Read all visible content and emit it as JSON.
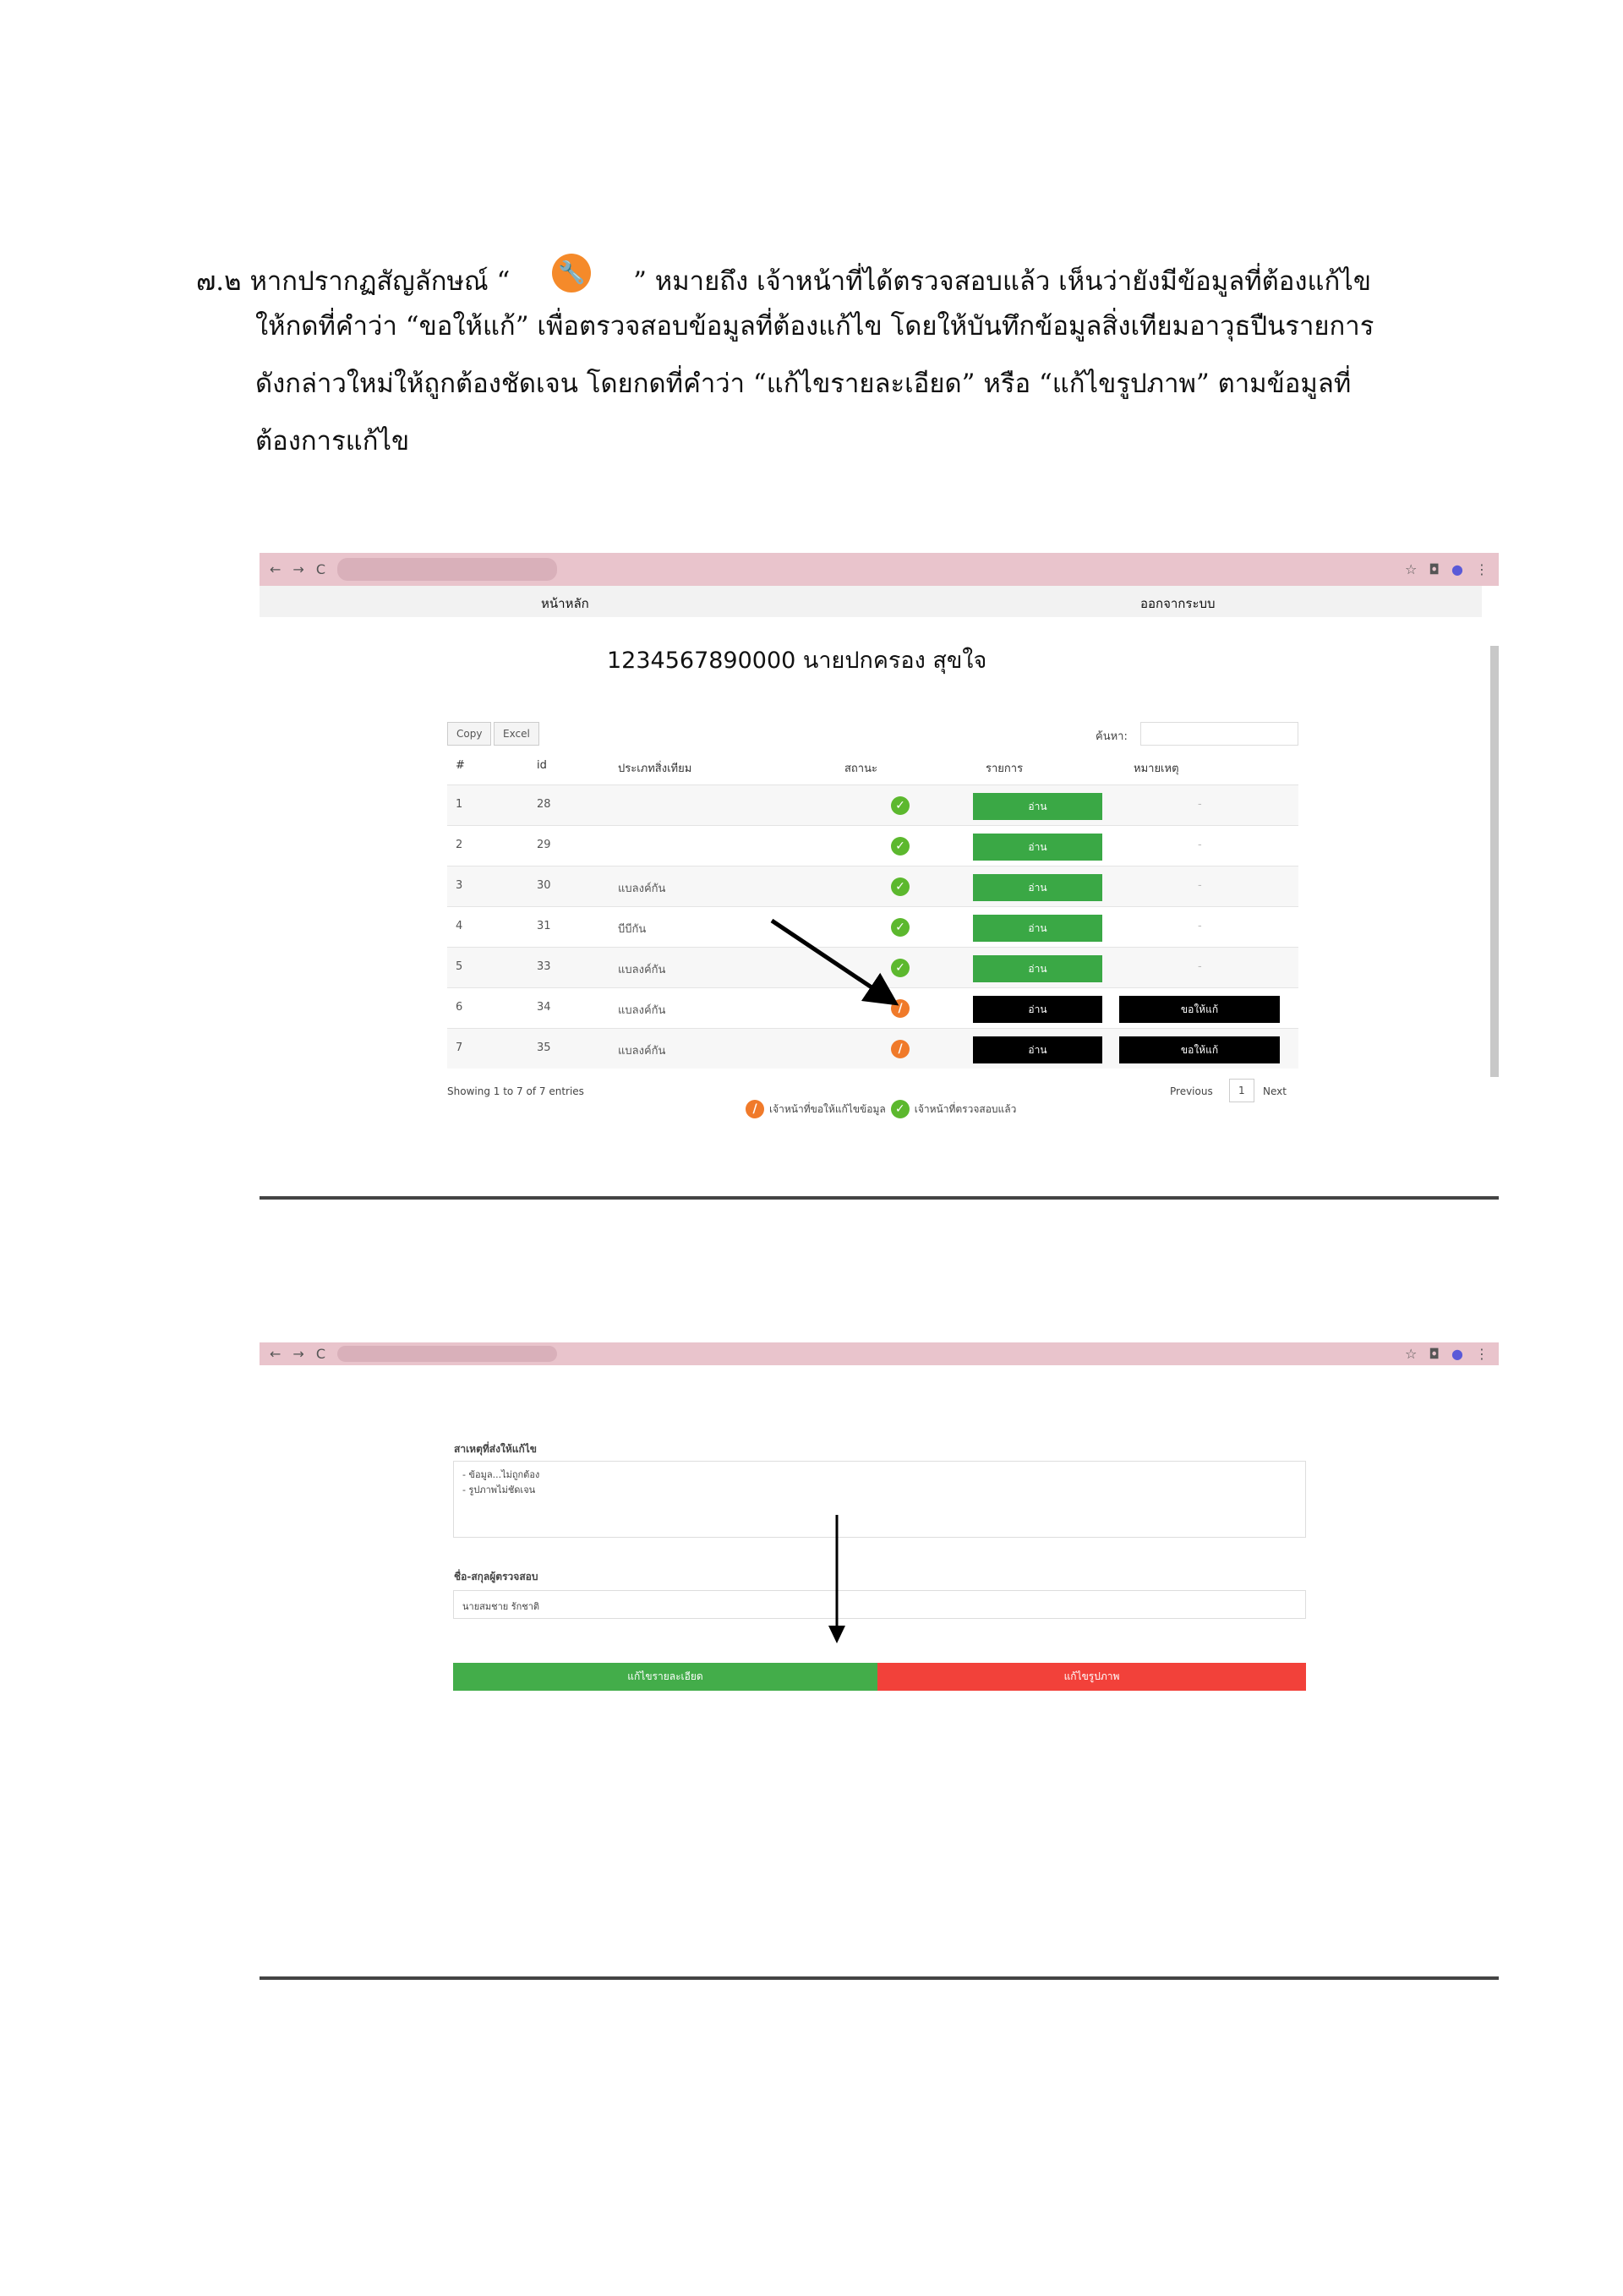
{
  "instruction": {
    "line1a": "๗.๒ หากปรากฏสัญลักษณ์ “",
    "icon": "wrench-icon",
    "line1b": "” หมายถึง เจ้าหน้าที่ได้ตรวจสอบแล้ว เห็นว่ายังมีข้อมูลที่ต้องแก้ไข",
    "line2": "ให้กดที่คำว่า “ขอให้แก้” เพื่อตรวจสอบข้อมูลที่ต้องแก้ไข โดยให้บันทึกข้อมูลสิ่งเทียมอาวุธปืนรายการ",
    "line3": "ดังกล่าวใหม่ให้ถูกต้องชัดเจน โดยกดที่คำว่า “แก้ไขรายละเอียด” หรือ “แก้ไขรูปภาพ”  ตามข้อมูลที่",
    "line4": "ต้องการแก้ไข"
  },
  "screen1": {
    "nav": {
      "home": "หน้าหลัก",
      "logout": "ออกจากระบบ"
    },
    "title": "1234567890000  นายปกครอง สุขใจ",
    "buttons": {
      "copy": "Copy",
      "excel": "Excel"
    },
    "search_label": "ค้นหา:",
    "headers": [
      "#",
      "id",
      "ประเภทสิ่งเทียม",
      "สถานะ",
      "รายการ",
      "หมายเหตุ"
    ],
    "rows": [
      {
        "n": "1",
        "id": "28",
        "type": "",
        "status": "approved",
        "action": "อ่าน",
        "note": "-"
      },
      {
        "n": "2",
        "id": "29",
        "type": "",
        "status": "approved",
        "action": "อ่าน",
        "note": "-"
      },
      {
        "n": "3",
        "id": "30",
        "type": "แบลงค์กัน",
        "status": "approved",
        "action": "อ่าน",
        "note": "-"
      },
      {
        "n": "4",
        "id": "31",
        "type": "บีบีกัน",
        "status": "approved",
        "action": "อ่าน",
        "note": "-"
      },
      {
        "n": "5",
        "id": "33",
        "type": "แบลงค์กัน",
        "status": "approved",
        "action": "อ่าน",
        "note": "-"
      },
      {
        "n": "6",
        "id": "34",
        "type": "แบลงค์กัน",
        "status": "fix",
        "action": "อ่าน",
        "note": "ขอให้แก้"
      },
      {
        "n": "7",
        "id": "35",
        "type": "แบลงค์กัน",
        "status": "fix",
        "action": "อ่าน",
        "note": "ขอให้แก้"
      }
    ],
    "info": "Showing 1 to 7 of 7 entries",
    "pager": {
      "prev": "Previous",
      "page": "1",
      "next": "Next"
    },
    "legend": {
      "fix": "เจ้าหน้าที่ขอให้แก้ไขข้อมูล",
      "ok": "เจ้าหน้าที่ตรวจสอบแล้ว"
    },
    "colors": {
      "green": "#3aa845",
      "black": "#000000",
      "orange": "#f07a2a"
    }
  },
  "screen2": {
    "reason_label": "สาเหตุที่ส่งให้แก้ไข",
    "reason_text": "- ข้อมูล...ไม่ถูกต้อง\n- รูปภาพไม่ชัดเจน",
    "inspector_label": "ชื่อ-สกุลผู้ตรวจสอบ",
    "inspector_value": "นายสมชาย รักชาติ",
    "edit_details": "แก้ไขรายละเอียด",
    "edit_images": "แก้ไขรูปภาพ",
    "colors": {
      "green": "#43ad4a",
      "red": "#f2413a"
    }
  }
}
